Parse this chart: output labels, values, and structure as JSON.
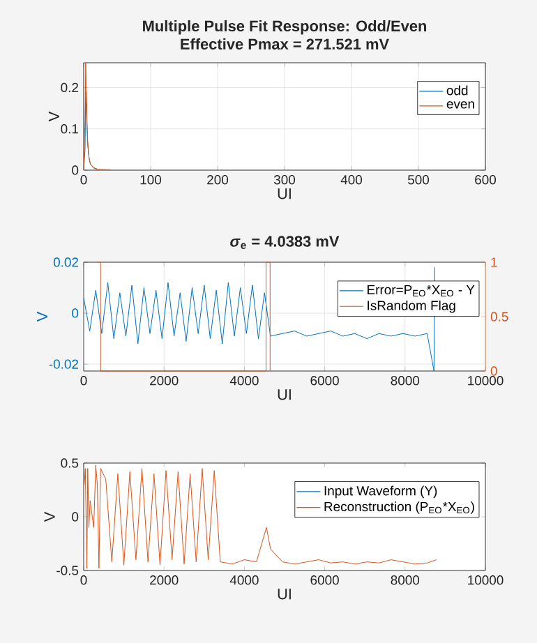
{
  "chart_data": [
    {
      "type": "line",
      "title": "Multiple Pulse Fit Response: Odd/Even",
      "subtitle": "Effective Pmax = 271.521 mV",
      "xlabel": "UI",
      "ylabel": "V",
      "xlim": [
        0,
        600
      ],
      "xticks": [
        0,
        100,
        200,
        300,
        400,
        500,
        600
      ],
      "ylim": [
        0,
        0.26
      ],
      "yticks": [
        0,
        0.1,
        0.2
      ],
      "grid": true,
      "legend": "top right",
      "series": [
        {
          "name": "odd",
          "color": "#0072bd",
          "x": [
            0,
            2,
            3,
            4,
            5,
            6,
            8,
            10,
            15,
            20
          ],
          "values": [
            0,
            0.05,
            0.19,
            0.14,
            0.1,
            0.06,
            0.03,
            0.015,
            0.006,
            0.003
          ]
        },
        {
          "name": "even",
          "color": "#d95319",
          "x": [
            0,
            2,
            3,
            4,
            5,
            6,
            8,
            10,
            15,
            20,
            40
          ],
          "values": [
            0,
            0.12,
            0.26,
            0.2,
            0.12,
            0.07,
            0.03,
            0.015,
            0.005,
            0.002,
            0.001
          ]
        }
      ]
    },
    {
      "type": "line",
      "title": "*σ*$_{e}$ = 4.0383 mV",
      "xlabel": "UI",
      "ylabel": "V",
      "xlim": [
        0,
        10000
      ],
      "xticks": [
        0,
        2000,
        4000,
        6000,
        8000,
        10000
      ],
      "ylim": [
        -0.0227,
        0.02
      ],
      "yticks": [
        -0.02,
        0,
        0.02
      ],
      "y2lim": [
        0,
        1
      ],
      "y2ticks": [
        0,
        0.5,
        1
      ],
      "grid": true,
      "legend": "top right",
      "series": [
        {
          "name": "Error=P$_{EO}$*X$_{EO}$ - Y",
          "color": "#0072bd",
          "x": [
            0,
            150,
            300,
            450,
            600,
            750,
            900,
            1050,
            1200,
            1350,
            1500,
            1650,
            1800,
            1950,
            2100,
            2250,
            2400,
            2550,
            2700,
            2850,
            3000,
            3150,
            3300,
            3450,
            3600,
            3750,
            3900,
            4050,
            4200,
            4350,
            4500,
            4650,
            4950,
            5250,
            5550,
            5850,
            6150,
            6450,
            6750,
            7050,
            7350,
            7650,
            7950,
            8250,
            8550,
            8720,
            8740
          ],
          "values": [
            0.006,
            -0.007,
            0.009,
            -0.008,
            0.012,
            -0.01,
            0.008,
            -0.009,
            0.011,
            -0.012,
            0.01,
            -0.008,
            0.009,
            -0.01,
            0.012,
            -0.009,
            0.008,
            -0.011,
            0.01,
            -0.008,
            0.011,
            -0.01,
            0.009,
            -0.012,
            0.012,
            -0.009,
            0.01,
            -0.008,
            0.011,
            -0.01,
            0.008,
            -0.009,
            -0.008,
            -0.007,
            -0.009,
            -0.008,
            -0.007,
            -0.009,
            -0.008,
            -0.01,
            -0.008,
            -0.009,
            -0.008,
            -0.009,
            -0.008,
            -0.0227,
            0.018
          ]
        },
        {
          "name": "IsRandom Flag",
          "color": "#d95319",
          "type": "step",
          "axis": "y2",
          "x": [
            340,
            420,
            4540,
            4640
          ],
          "values": [
            1,
            0,
            1,
            0
          ]
        }
      ]
    },
    {
      "type": "line",
      "xlabel": "UI",
      "ylabel": "V",
      "xlim": [
        0,
        10000
      ],
      "xticks": [
        0,
        2000,
        4000,
        6000,
        8000,
        10000
      ],
      "ylim": [
        -0.5,
        0.5
      ],
      "yticks": [
        -0.5,
        0,
        0.5
      ],
      "legend": "top right",
      "x": [
        15,
        40,
        80,
        100,
        130,
        160,
        250,
        300,
        340,
        380,
        420,
        550,
        700,
        850,
        1000,
        1150,
        1300,
        1450,
        1600,
        1750,
        1900,
        2050,
        2200,
        2350,
        2500,
        2650,
        2800,
        2950,
        3100,
        3250,
        3400,
        3700,
        4000,
        4300,
        4550,
        4650,
        4950,
        5250,
        5550,
        5850,
        6150,
        6450,
        6750,
        7050,
        7350,
        7650,
        7950,
        8250,
        8550,
        8780
      ],
      "series": [
        {
          "name": "Input Waveform (Y)",
          "color": "#0072bd",
          "values": [
            null,
            null,
            null,
            null,
            null,
            null,
            null,
            null,
            null,
            null,
            null,
            null,
            null,
            null,
            null,
            null,
            null,
            null,
            null,
            null,
            null,
            null,
            null,
            null,
            null,
            null,
            null,
            null,
            null,
            null,
            null,
            null,
            null,
            null,
            null,
            null,
            null,
            null,
            null,
            null,
            null,
            null,
            null,
            null,
            null,
            null,
            null,
            null,
            null,
            null
          ]
        },
        {
          "name": "Reconstruction (P$_{EO}$*X$_{EO}$)",
          "color": "#d95319",
          "values": [
            0.3,
            0.45,
            -0.48,
            0.45,
            -0.1,
            0.15,
            -0.1,
            0.48,
            0.3,
            -0.48,
            0.45,
            0.35,
            -0.42,
            0.4,
            -0.45,
            0.42,
            -0.4,
            0.45,
            -0.42,
            0.4,
            -0.45,
            0.43,
            -0.4,
            0.42,
            -0.44,
            0.4,
            -0.42,
            0.45,
            -0.4,
            0.43,
            -0.42,
            -0.44,
            -0.4,
            -0.42,
            -0.1,
            -0.3,
            -0.42,
            -0.44,
            -0.42,
            -0.4,
            -0.43,
            -0.42,
            -0.44,
            -0.42,
            -0.43,
            -0.4,
            -0.42,
            -0.44,
            -0.43,
            -0.4
          ]
        }
      ]
    }
  ]
}
